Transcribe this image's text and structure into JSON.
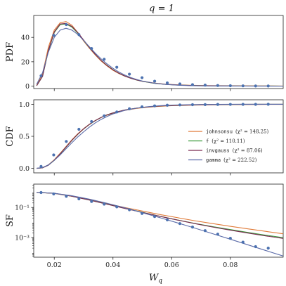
{
  "chart_data": [
    {
      "type": "line",
      "title": "q = 1",
      "ylabel": "PDF",
      "xlabel": "",
      "xlim": [
        0.013,
        0.098
      ],
      "ylim": [
        -2,
        58
      ],
      "xticks": [
        0.02,
        0.04,
        0.06,
        0.08
      ],
      "yticks": [
        0,
        20,
        40
      ],
      "scale": "linear",
      "points": {
        "x": [
          0.0155,
          0.0198,
          0.0241,
          0.0284,
          0.0327,
          0.037,
          0.0413,
          0.0456,
          0.0499,
          0.0542,
          0.0585,
          0.0628,
          0.0671,
          0.0714,
          0.0757,
          0.08,
          0.0843,
          0.0886,
          0.0929
        ],
        "y": [
          8.5,
          41.7,
          50.5,
          42.3,
          30.8,
          22.0,
          15.5,
          9.8,
          6.9,
          4.0,
          2.6,
          1.8,
          1.2,
          0.8,
          0.5,
          0.3,
          0.2,
          0.1,
          0.1
        ]
      },
      "series": [
        {
          "name": "johnsonsu",
          "color": "#e07b39",
          "x": [
            0.014,
            0.016,
            0.018,
            0.02,
            0.022,
            0.024,
            0.026,
            0.028,
            0.03,
            0.032,
            0.034,
            0.036,
            0.038,
            0.04,
            0.042,
            0.044,
            0.046,
            0.048,
            0.05,
            0.054,
            0.058,
            0.062,
            0.066,
            0.07,
            0.075,
            0.08,
            0.085,
            0.09,
            0.095,
            0.098
          ],
          "y": [
            0.5,
            10,
            32,
            46,
            52,
            53,
            50,
            44,
            37,
            31,
            25.5,
            20.5,
            16.5,
            13,
            10.3,
            8.2,
            6.5,
            5.1,
            4.0,
            2.5,
            1.6,
            1.05,
            0.7,
            0.5,
            0.35,
            0.25,
            0.18,
            0.13,
            0.1,
            0.08
          ]
        },
        {
          "name": "f",
          "color": "#3a9a3a",
          "x": [
            0.014,
            0.016,
            0.018,
            0.02,
            0.022,
            0.024,
            0.026,
            0.028,
            0.03,
            0.032,
            0.034,
            0.036,
            0.038,
            0.04,
            0.042,
            0.044,
            0.046,
            0.048,
            0.05,
            0.054,
            0.058,
            0.062,
            0.066,
            0.07,
            0.075,
            0.08,
            0.085,
            0.09,
            0.095,
            0.098
          ],
          "y": [
            0.3,
            8,
            29,
            44,
            50.5,
            51,
            48.5,
            43.5,
            37.5,
            31.5,
            26,
            21,
            17,
            13.5,
            10.6,
            8.3,
            6.5,
            5.0,
            3.9,
            2.3,
            1.4,
            0.85,
            0.55,
            0.35,
            0.2,
            0.12,
            0.08,
            0.05,
            0.03,
            0.02
          ]
        },
        {
          "name": "invgauss",
          "color": "#7a2a50",
          "x": [
            0.014,
            0.016,
            0.018,
            0.02,
            0.022,
            0.024,
            0.026,
            0.028,
            0.03,
            0.032,
            0.034,
            0.036,
            0.038,
            0.04,
            0.042,
            0.044,
            0.046,
            0.048,
            0.05,
            0.054,
            0.058,
            0.062,
            0.066,
            0.07,
            0.075,
            0.08,
            0.085,
            0.09,
            0.095,
            0.098
          ],
          "y": [
            0.3,
            8,
            29.5,
            44.5,
            51,
            51.5,
            49,
            44,
            37.8,
            31.6,
            26,
            21,
            16.9,
            13.4,
            10.6,
            8.3,
            6.5,
            5.1,
            4.0,
            2.4,
            1.45,
            0.9,
            0.55,
            0.35,
            0.2,
            0.12,
            0.07,
            0.04,
            0.025,
            0.02
          ]
        },
        {
          "name": "gamma",
          "color": "#5a6aa8",
          "x": [
            0.014,
            0.016,
            0.018,
            0.02,
            0.022,
            0.024,
            0.026,
            0.028,
            0.03,
            0.032,
            0.034,
            0.036,
            0.038,
            0.04,
            0.042,
            0.044,
            0.046,
            0.048,
            0.05,
            0.054,
            0.058,
            0.062,
            0.066,
            0.07,
            0.075,
            0.08,
            0.085,
            0.09,
            0.095,
            0.098
          ],
          "y": [
            1.5,
            11,
            28,
            40,
            46,
            47.5,
            46,
            42.5,
            37.5,
            32.2,
            27,
            22.3,
            18.2,
            14.6,
            11.6,
            9.1,
            7.1,
            5.5,
            4.2,
            2.4,
            1.35,
            0.75,
            0.4,
            0.22,
            0.1,
            0.05,
            0.02,
            0.01,
            0.005,
            0.003
          ]
        }
      ]
    },
    {
      "type": "line",
      "ylabel": "CDF",
      "xlabel": "",
      "xlim": [
        0.013,
        0.098
      ],
      "ylim": [
        -0.07,
        1.07
      ],
      "xticks": [
        0.02,
        0.04,
        0.06,
        0.08
      ],
      "yticks": [
        0.0,
        0.5,
        1.0
      ],
      "yticklabels": [
        "0.0",
        "0.5",
        "1.0"
      ],
      "scale": "linear",
      "legend": {
        "placement": "right",
        "entries": [
          {
            "name": "johnsonsu",
            "stat": "(χ² = 148.25)",
            "color": "#e07b39"
          },
          {
            "name": "f",
            "stat": "(χ² = 110.11)",
            "color": "#3a9a3a"
          },
          {
            "name": "invgauss",
            "stat": "(χ² = 87.06)",
            "color": "#7a2a50"
          },
          {
            "name": "gamma",
            "stat": "(χ² = 222.52)",
            "color": "#5a6aa8"
          }
        ]
      },
      "points": {
        "x": [
          0.0155,
          0.0198,
          0.0241,
          0.0284,
          0.0327,
          0.037,
          0.0413,
          0.0456,
          0.0499,
          0.0542,
          0.0585,
          0.0628,
          0.0671,
          0.0714,
          0.0757,
          0.08,
          0.0843,
          0.0886,
          0.0929
        ],
        "y": [
          0.03,
          0.21,
          0.42,
          0.61,
          0.73,
          0.82,
          0.88,
          0.93,
          0.96,
          0.975,
          0.985,
          0.99,
          0.993,
          0.995,
          0.997,
          0.998,
          0.999,
          0.999,
          1.0
        ]
      },
      "series": [
        {
          "name": "johnsonsu",
          "color": "#e07b39",
          "x": [
            0.014,
            0.016,
            0.018,
            0.02,
            0.022,
            0.024,
            0.026,
            0.028,
            0.03,
            0.032,
            0.034,
            0.036,
            0.038,
            0.04,
            0.044,
            0.048,
            0.052,
            0.056,
            0.06,
            0.07,
            0.08,
            0.09,
            0.098
          ],
          "y": [
            0.0,
            0.01,
            0.055,
            0.135,
            0.235,
            0.34,
            0.445,
            0.54,
            0.62,
            0.69,
            0.745,
            0.795,
            0.83,
            0.86,
            0.905,
            0.935,
            0.955,
            0.968,
            0.977,
            0.99,
            0.995,
            0.997,
            0.998
          ]
        },
        {
          "name": "f",
          "color": "#3a9a3a",
          "x": [
            0.014,
            0.016,
            0.018,
            0.02,
            0.022,
            0.024,
            0.026,
            0.028,
            0.03,
            0.032,
            0.034,
            0.036,
            0.038,
            0.04,
            0.044,
            0.048,
            0.052,
            0.056,
            0.06,
            0.07,
            0.08,
            0.09,
            0.098
          ],
          "y": [
            0.0,
            0.008,
            0.05,
            0.125,
            0.225,
            0.33,
            0.435,
            0.53,
            0.615,
            0.685,
            0.745,
            0.795,
            0.835,
            0.865,
            0.91,
            0.94,
            0.96,
            0.973,
            0.982,
            0.994,
            0.998,
            0.999,
            1.0
          ]
        },
        {
          "name": "invgauss",
          "color": "#7a2a50",
          "x": [
            0.014,
            0.016,
            0.018,
            0.02,
            0.022,
            0.024,
            0.026,
            0.028,
            0.03,
            0.032,
            0.034,
            0.036,
            0.038,
            0.04,
            0.044,
            0.048,
            0.052,
            0.056,
            0.06,
            0.07,
            0.08,
            0.09,
            0.098
          ],
          "y": [
            0.0,
            0.008,
            0.05,
            0.127,
            0.228,
            0.333,
            0.438,
            0.533,
            0.617,
            0.688,
            0.747,
            0.796,
            0.836,
            0.866,
            0.91,
            0.94,
            0.96,
            0.973,
            0.982,
            0.994,
            0.998,
            0.999,
            1.0
          ]
        },
        {
          "name": "gamma",
          "color": "#5a6aa8",
          "x": [
            0.014,
            0.016,
            0.018,
            0.02,
            0.022,
            0.024,
            0.026,
            0.028,
            0.03,
            0.032,
            0.034,
            0.036,
            0.038,
            0.04,
            0.044,
            0.048,
            0.052,
            0.056,
            0.06,
            0.07,
            0.08,
            0.09,
            0.098
          ],
          "y": [
            0.002,
            0.014,
            0.055,
            0.125,
            0.21,
            0.305,
            0.4,
            0.49,
            0.57,
            0.645,
            0.71,
            0.765,
            0.81,
            0.85,
            0.905,
            0.94,
            0.963,
            0.978,
            0.987,
            0.997,
            0.999,
            1.0,
            1.0
          ]
        }
      ]
    },
    {
      "type": "line",
      "ylabel": "SF",
      "xlabel": "W_q",
      "xlim": [
        0.013,
        0.098
      ],
      "ylim_log10": [
        -4.3,
        0.55
      ],
      "xticks": [
        0.02,
        0.04,
        0.06,
        0.08
      ],
      "xticklabels": [
        "0.02",
        "0.04",
        "0.06",
        "0.08"
      ],
      "yticks": [
        0.1,
        0.001
      ],
      "yticklabels": [
        "10⁻¹",
        "10⁻³"
      ],
      "scale": "log",
      "points": {
        "x": [
          0.0155,
          0.0198,
          0.0241,
          0.0284,
          0.0327,
          0.037,
          0.0413,
          0.0456,
          0.0499,
          0.0542,
          0.0585,
          0.0628,
          0.0671,
          0.0714,
          0.0757,
          0.08,
          0.0843,
          0.0886,
          0.0929
        ],
        "y": [
          0.98,
          0.79,
          0.55,
          0.37,
          0.25,
          0.165,
          0.11,
          0.07,
          0.04,
          0.025,
          0.015,
          0.0085,
          0.005,
          0.0029,
          0.0017,
          0.0009,
          0.0005,
          0.00025,
          0.0002
        ]
      },
      "series": [
        {
          "name": "johnsonsu",
          "color": "#e07b39",
          "x": [
            0.014,
            0.02,
            0.026,
            0.032,
            0.038,
            0.044,
            0.05,
            0.056,
            0.062,
            0.068,
            0.074,
            0.08,
            0.086,
            0.092,
            0.098
          ],
          "y": [
            1.0,
            0.86,
            0.55,
            0.32,
            0.18,
            0.1,
            0.058,
            0.034,
            0.021,
            0.013,
            0.0085,
            0.0056,
            0.0038,
            0.0026,
            0.0018
          ]
        },
        {
          "name": "f",
          "color": "#3a9a3a",
          "x": [
            0.014,
            0.02,
            0.026,
            0.032,
            0.038,
            0.044,
            0.05,
            0.056,
            0.062,
            0.068,
            0.074,
            0.08,
            0.086,
            0.092,
            0.098
          ],
          "y": [
            1.0,
            0.87,
            0.56,
            0.31,
            0.165,
            0.088,
            0.048,
            0.026,
            0.0148,
            0.0087,
            0.0053,
            0.0034,
            0.0022,
            0.00145,
            0.001
          ]
        },
        {
          "name": "invgauss",
          "color": "#7a2a50",
          "x": [
            0.014,
            0.02,
            0.026,
            0.032,
            0.038,
            0.044,
            0.05,
            0.056,
            0.062,
            0.068,
            0.074,
            0.08,
            0.086,
            0.092,
            0.098
          ],
          "y": [
            1.0,
            0.87,
            0.56,
            0.31,
            0.164,
            0.087,
            0.047,
            0.026,
            0.0145,
            0.0084,
            0.005,
            0.0031,
            0.002,
            0.0013,
            0.00088
          ]
        },
        {
          "name": "gamma",
          "color": "#5a6aa8",
          "x": [
            0.014,
            0.02,
            0.026,
            0.032,
            0.038,
            0.044,
            0.05,
            0.056,
            0.062,
            0.068,
            0.074,
            0.08,
            0.086,
            0.092,
            0.098
          ],
          "y": [
            0.998,
            0.875,
            0.6,
            0.355,
            0.19,
            0.095,
            0.045,
            0.021,
            0.0095,
            0.0042,
            0.0018,
            0.00078,
            0.00033,
            0.00014,
            6e-05
          ]
        }
      ]
    }
  ],
  "style": {
    "point_color": "#4c72b0",
    "axis_color": "#222222"
  }
}
